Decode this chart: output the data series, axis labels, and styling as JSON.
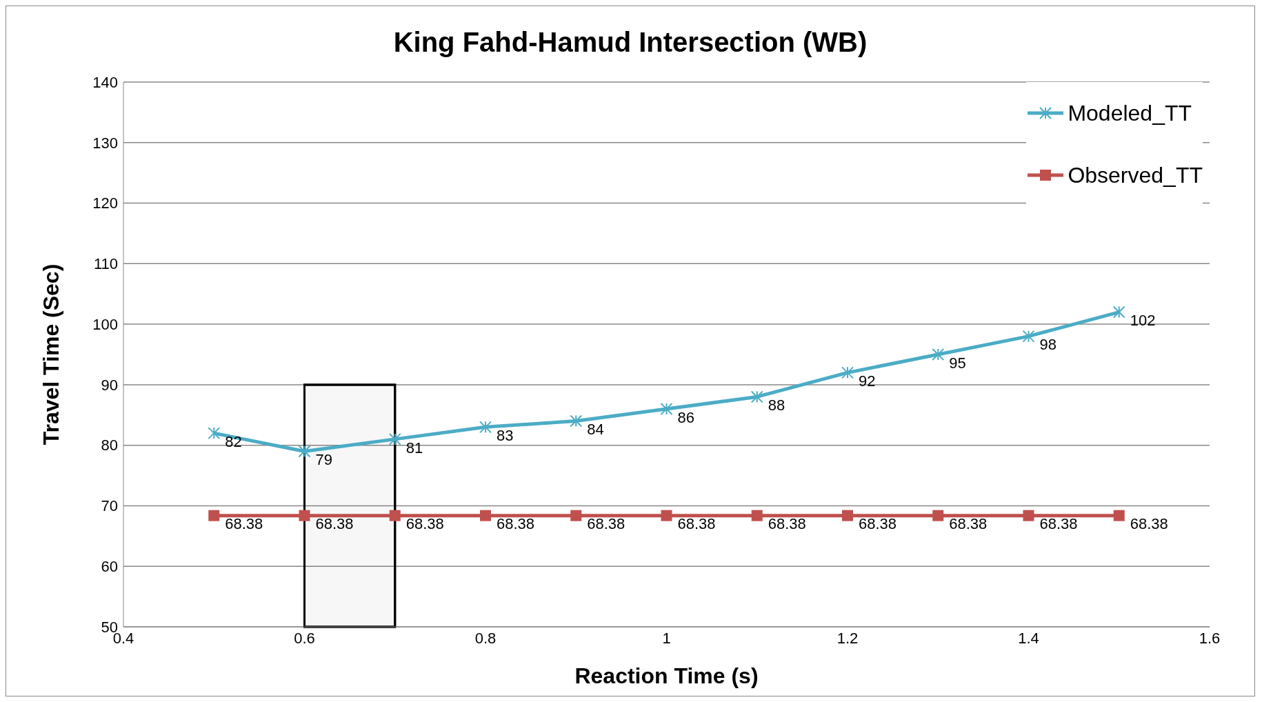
{
  "chart_data": {
    "type": "line",
    "title": "King Fahd-Hamud Intersection (WB)",
    "xlabel": "Reaction Time (s)",
    "ylabel": "Travel Time  (Sec)",
    "x": [
      0.5,
      0.6,
      0.7,
      0.8,
      0.9,
      1,
      1.1,
      1.2,
      1.3,
      1.4,
      1.5
    ],
    "series": [
      {
        "name": "Modeled_TT",
        "color": "#4bacc6",
        "marker": "cross",
        "values": [
          82,
          79,
          81,
          83,
          84,
          86,
          88,
          92,
          95,
          98,
          102
        ]
      },
      {
        "name": "Observed_TT",
        "color": "#c0504d",
        "marker": "square",
        "values": [
          68.38,
          68.38,
          68.38,
          68.38,
          68.38,
          68.38,
          68.38,
          68.38,
          68.38,
          68.38,
          68.38
        ]
      }
    ],
    "xlim": [
      0.4,
      1.6
    ],
    "xticks": [
      0.4,
      0.6,
      0.8,
      1,
      1.2,
      1.4,
      1.6
    ],
    "ylim": [
      50,
      140
    ],
    "yticks": [
      50,
      60,
      70,
      80,
      90,
      100,
      110,
      120,
      130,
      140
    ],
    "bands": [
      {
        "axis": "x",
        "from": 0.6,
        "to": 0.7,
        "color": "#000000"
      }
    ],
    "grid": "y",
    "legend": "top right",
    "data_labels": true,
    "line_style": "solid"
  }
}
